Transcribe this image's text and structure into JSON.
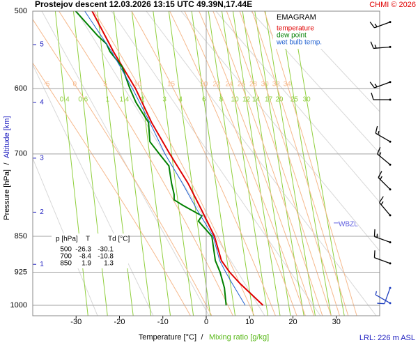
{
  "chart_data": {
    "type": "emagram",
    "title": "Prostejov  descent  12.03.2026 13:15 UTC  49.39N,17.44E",
    "credit": "CHMI © 2026",
    "legend_title": "EMAGRAM",
    "x_label": "Temperature [°C]",
    "x_label_separator": "/",
    "x_label_2": "Mixing ratio [g/kg]",
    "y_label": "Pressure [hPa]",
    "y_label_separator": "/",
    "y_label_2": "Altitude [km]",
    "footer": "LRL: 226 m ASL",
    "log_scale": true,
    "xlim": [
      -40,
      40
    ],
    "xticks": [
      -30,
      -20,
      -10,
      0,
      10,
      20,
      30
    ],
    "ylim": [
      1025,
      500
    ],
    "yticks": [
      500,
      600,
      700,
      850,
      925,
      1000
    ],
    "altitude_km": [
      1,
      2,
      3,
      4,
      5
    ],
    "altitude_pressure": [
      908,
      803,
      707,
      620,
      541
    ],
    "mixing_ratios": [
      0.4,
      0.6,
      1,
      1.4,
      2,
      3,
      4,
      6,
      8,
      10,
      12,
      14,
      17,
      20,
      25,
      30
    ],
    "mixing_ratio_color": "#8fcf3c",
    "moist_adiabats": [
      -5,
      0,
      5,
      10,
      15,
      20,
      22,
      24,
      26,
      28,
      30,
      32,
      34
    ],
    "moist_adiabat_color": "#f6b98c",
    "series": [
      {
        "name": "temperature",
        "color": "#e00000",
        "pressure": [
          1000,
          950,
          925,
          900,
          850,
          800,
          750,
          700,
          650,
          600,
          550,
          500
        ],
        "values": [
          13.1,
          7.8,
          5.4,
          3.5,
          1.9,
          -1,
          -4.2,
          -8.4,
          -12.6,
          -16.3,
          -21.4,
          -26.3
        ]
      },
      {
        "name": "dew point",
        "color": "#008000",
        "pressure": [
          1000,
          960,
          925,
          900,
          850,
          820,
          810,
          790,
          780,
          770,
          750,
          720,
          700,
          680,
          650,
          620,
          600,
          570,
          550,
          540,
          530,
          500
        ],
        "values": [
          4.6,
          4.2,
          3.2,
          2.1,
          1.3,
          -1.8,
          -1,
          -5.4,
          -7.4,
          -7.4,
          -8,
          -8.6,
          -10.8,
          -13,
          -13.3,
          -16.2,
          -17.6,
          -19.4,
          -22.2,
          -23,
          -25,
          -30.1
        ]
      },
      {
        "name": "wet bulb temp.",
        "color": "#2060d0",
        "pressure": [
          1000,
          950,
          925,
          900,
          850,
          800,
          750,
          700,
          650,
          600,
          550,
          500
        ],
        "values": [
          9,
          6,
          4.5,
          3.1,
          1.6,
          -2,
          -5.5,
          -9.5,
          -13,
          -17,
          -21.8,
          -28
        ]
      }
    ],
    "wbzl_label": "WBZL",
    "wbzl_pressure": 825,
    "wbzl_color": "#6060e0",
    "table": {
      "header": [
        "p [hPa]",
        "T",
        "Td [°C]"
      ],
      "rows": [
        [
          500,
          -26.3,
          -30.1
        ],
        [
          700,
          -8.4,
          -10.8
        ],
        [
          850,
          1.9,
          1.3
        ]
      ]
    },
    "wind": [
      {
        "pressure": 513,
        "direction": 250,
        "speed": 15,
        "color": "#000000"
      },
      {
        "pressure": 544,
        "direction": 265,
        "speed": 15,
        "color": "#000000"
      },
      {
        "pressure": 591,
        "direction": 250,
        "speed": 15,
        "color": "#000000"
      },
      {
        "pressure": 616,
        "direction": 270,
        "speed": 10,
        "color": "#000000"
      },
      {
        "pressure": 680,
        "direction": 300,
        "speed": 15,
        "color": "#000000"
      },
      {
        "pressure": 718,
        "direction": 310,
        "speed": 15,
        "color": "#000000"
      },
      {
        "pressure": 761,
        "direction": 315,
        "speed": 15,
        "color": "#000000"
      },
      {
        "pressure": 809,
        "direction": 320,
        "speed": 15,
        "color": "#000000"
      },
      {
        "pressure": 862,
        "direction": 290,
        "speed": 15,
        "color": "#000000"
      },
      {
        "pressure": 906,
        "direction": 290,
        "speed": 10,
        "color": "#000000"
      },
      {
        "pressure": 960,
        "direction": 200,
        "speed": 10,
        "color": "#2040c0"
      },
      {
        "pressure": 995,
        "direction": 300,
        "speed": 5,
        "color": "#2040c0"
      }
    ]
  }
}
